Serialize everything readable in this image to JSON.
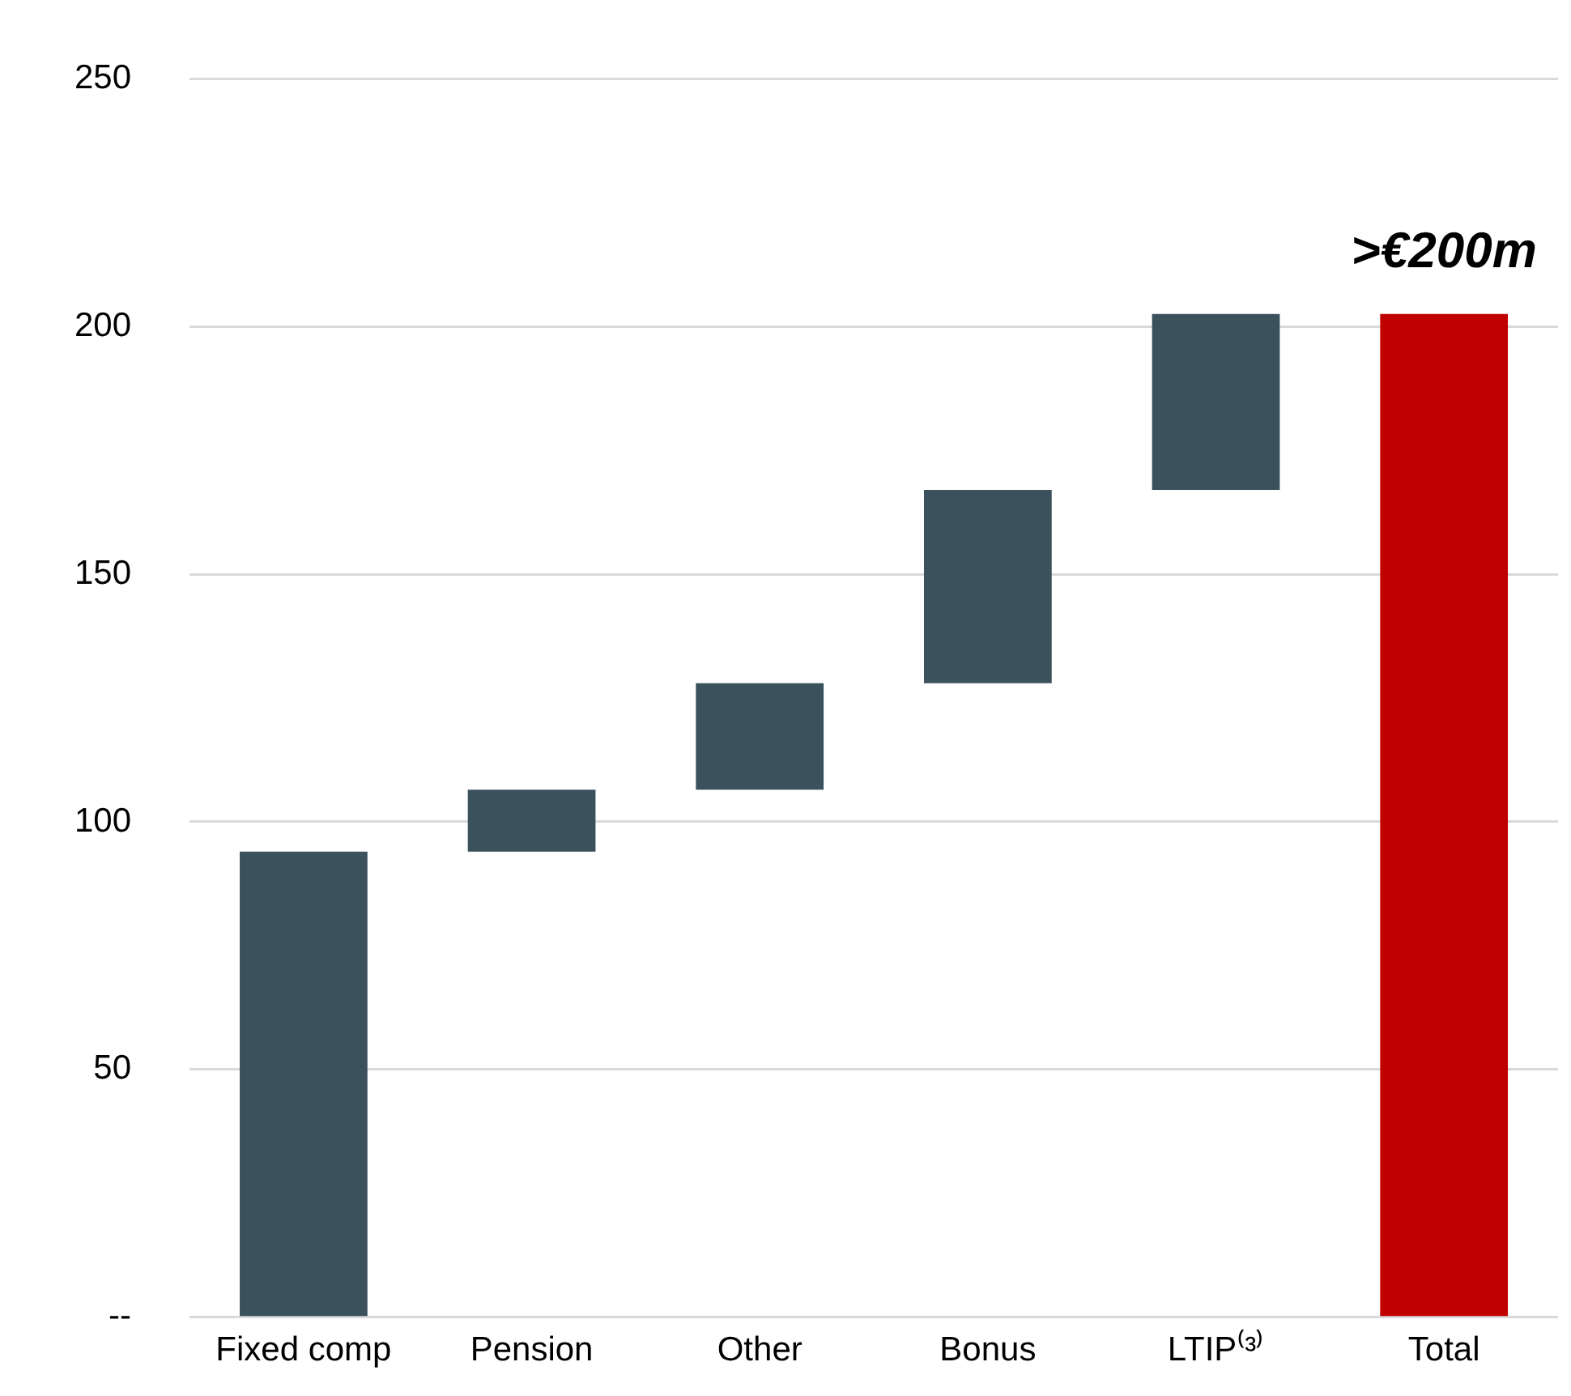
{
  "chart_data": {
    "type": "bar",
    "categories": [
      "Fixed comp",
      "Pension",
      "Other",
      "Bonus",
      "LTIP⁽³⁾",
      "Total"
    ],
    "values": [
      94,
      12.5,
      21.5,
      39,
      35.5,
      202.5
    ],
    "base": [
      0,
      94,
      106.5,
      128,
      167,
      0
    ],
    "colors": [
      "#3b515c",
      "#3b515c",
      "#3b515c",
      "#3b515c",
      "#3b515c",
      "#c00000"
    ],
    "ylim": [
      0,
      250
    ],
    "yticks": [
      {
        "value": 0,
        "label": "--"
      },
      50,
      100,
      150,
      200,
      250
    ],
    "grid": "y",
    "legend": false,
    "annotations": [
      {
        "text": ">€200m",
        "x": "Total",
        "y": 202.5
      }
    ]
  }
}
